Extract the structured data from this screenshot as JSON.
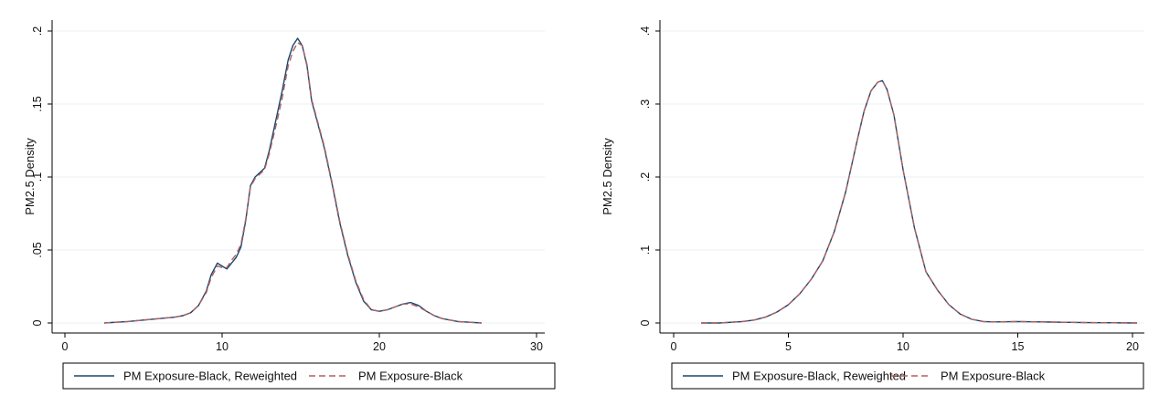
{
  "chart_data": [
    {
      "type": "line",
      "title": "",
      "xlabel": "",
      "ylabel": "PM2.5 Density",
      "xlim": [
        0,
        30
      ],
      "ylim": [
        0,
        0.2
      ],
      "xticks": [
        0,
        10,
        20,
        30
      ],
      "xtick_labels": [
        "0",
        "10",
        "20",
        "30"
      ],
      "yticks": [
        0,
        0.05,
        0.1,
        0.15,
        0.2
      ],
      "ytick_labels": [
        "0",
        ".05",
        ".1",
        ".15",
        ".2"
      ],
      "grid": true,
      "legend_position": "bottom",
      "series": [
        {
          "name": "PM Exposure-Black, Reweighted",
          "color": "#1a476f",
          "dash": "solid",
          "x": [
            2.5,
            4,
            5,
            6,
            7,
            7.5,
            8,
            8.5,
            9,
            9.3,
            9.7,
            10,
            10.3,
            10.6,
            10.9,
            11.2,
            11.5,
            11.8,
            12.1,
            12.4,
            12.7,
            13,
            13.4,
            13.8,
            14.2,
            14.5,
            14.8,
            15.1,
            15.4,
            15.7,
            16,
            16.5,
            17,
            17.5,
            18,
            18.5,
            19,
            19.5,
            20,
            20.5,
            21,
            21.5,
            22,
            22.5,
            23,
            23.5,
            24,
            25,
            26.5
          ],
          "y": [
            0.0,
            0.001,
            0.002,
            0.003,
            0.004,
            0.005,
            0.007,
            0.012,
            0.022,
            0.033,
            0.041,
            0.039,
            0.037,
            0.041,
            0.045,
            0.052,
            0.07,
            0.094,
            0.1,
            0.103,
            0.106,
            0.118,
            0.138,
            0.158,
            0.18,
            0.19,
            0.195,
            0.19,
            0.176,
            0.152,
            0.14,
            0.12,
            0.095,
            0.068,
            0.046,
            0.028,
            0.015,
            0.009,
            0.008,
            0.009,
            0.011,
            0.013,
            0.014,
            0.012,
            0.008,
            0.005,
            0.003,
            0.001,
            0.0
          ]
        },
        {
          "name": "PM Exposure-Black",
          "color": "#b0605f",
          "dash": "dashed",
          "x": [
            2.5,
            4,
            5,
            6,
            7,
            7.5,
            8,
            8.5,
            9,
            9.3,
            9.7,
            10,
            10.3,
            10.6,
            10.9,
            11.2,
            11.5,
            11.8,
            12.1,
            12.4,
            12.7,
            13,
            13.4,
            13.8,
            14.2,
            14.5,
            14.8,
            15.1,
            15.4,
            15.7,
            16,
            16.5,
            17,
            17.5,
            18,
            18.5,
            19,
            19.5,
            20,
            20.5,
            21,
            21.5,
            22,
            22.5,
            23,
            23.5,
            24,
            25,
            26.5
          ],
          "y": [
            0.0,
            0.001,
            0.002,
            0.003,
            0.004,
            0.005,
            0.007,
            0.012,
            0.021,
            0.031,
            0.039,
            0.038,
            0.038,
            0.043,
            0.047,
            0.054,
            0.071,
            0.093,
            0.099,
            0.102,
            0.105,
            0.116,
            0.134,
            0.153,
            0.176,
            0.186,
            0.192,
            0.19,
            0.177,
            0.153,
            0.141,
            0.121,
            0.096,
            0.069,
            0.047,
            0.029,
            0.016,
            0.009,
            0.008,
            0.009,
            0.011,
            0.013,
            0.013,
            0.011,
            0.008,
            0.005,
            0.003,
            0.001,
            0.0
          ]
        }
      ]
    },
    {
      "type": "line",
      "title": "",
      "xlabel": "",
      "ylabel": "PM2.5 Density",
      "xlim": [
        0,
        20
      ],
      "ylim": [
        0,
        0.4
      ],
      "xticks": [
        0,
        5,
        10,
        15,
        20
      ],
      "xtick_labels": [
        "0",
        "5",
        "10",
        "15",
        "20"
      ],
      "yticks": [
        0,
        0.1,
        0.2,
        0.3,
        0.4
      ],
      "ytick_labels": [
        "0",
        ".1",
        ".2",
        ".3",
        ".4"
      ],
      "grid": true,
      "legend_position": "bottom",
      "series": [
        {
          "name": "PM Exposure-Black, Reweighted",
          "color": "#1a476f",
          "dash": "solid",
          "x": [
            1.2,
            2,
            3,
            3.5,
            4,
            4.5,
            5,
            5.5,
            6,
            6.5,
            7,
            7.5,
            8,
            8.3,
            8.6,
            8.9,
            9.1,
            9.3,
            9.6,
            10,
            10.5,
            11,
            11.5,
            12,
            12.5,
            13,
            13.5,
            14,
            15,
            16,
            17,
            18,
            20.2
          ],
          "y": [
            0.0,
            0.0,
            0.002,
            0.004,
            0.008,
            0.015,
            0.025,
            0.04,
            0.06,
            0.085,
            0.125,
            0.18,
            0.25,
            0.29,
            0.318,
            0.33,
            0.332,
            0.32,
            0.285,
            0.21,
            0.13,
            0.07,
            0.045,
            0.025,
            0.012,
            0.005,
            0.002,
            0.0015,
            0.002,
            0.0015,
            0.001,
            0.0005,
            0.0
          ]
        },
        {
          "name": "PM Exposure-Black",
          "color": "#b0605f",
          "dash": "dashed",
          "x": [
            1.2,
            2,
            3,
            3.5,
            4,
            4.5,
            5,
            5.5,
            6,
            6.5,
            7,
            7.5,
            8,
            8.3,
            8.6,
            8.9,
            9.1,
            9.3,
            9.6,
            10,
            10.5,
            11,
            11.5,
            12,
            12.5,
            13,
            13.5,
            14,
            15,
            16,
            17,
            18,
            20.2
          ],
          "y": [
            0.0,
            0.0,
            0.002,
            0.004,
            0.008,
            0.015,
            0.025,
            0.04,
            0.06,
            0.085,
            0.125,
            0.18,
            0.25,
            0.29,
            0.318,
            0.33,
            0.332,
            0.32,
            0.285,
            0.21,
            0.13,
            0.07,
            0.045,
            0.025,
            0.012,
            0.005,
            0.002,
            0.0015,
            0.002,
            0.0015,
            0.001,
            0.0005,
            0.0
          ]
        }
      ]
    }
  ]
}
